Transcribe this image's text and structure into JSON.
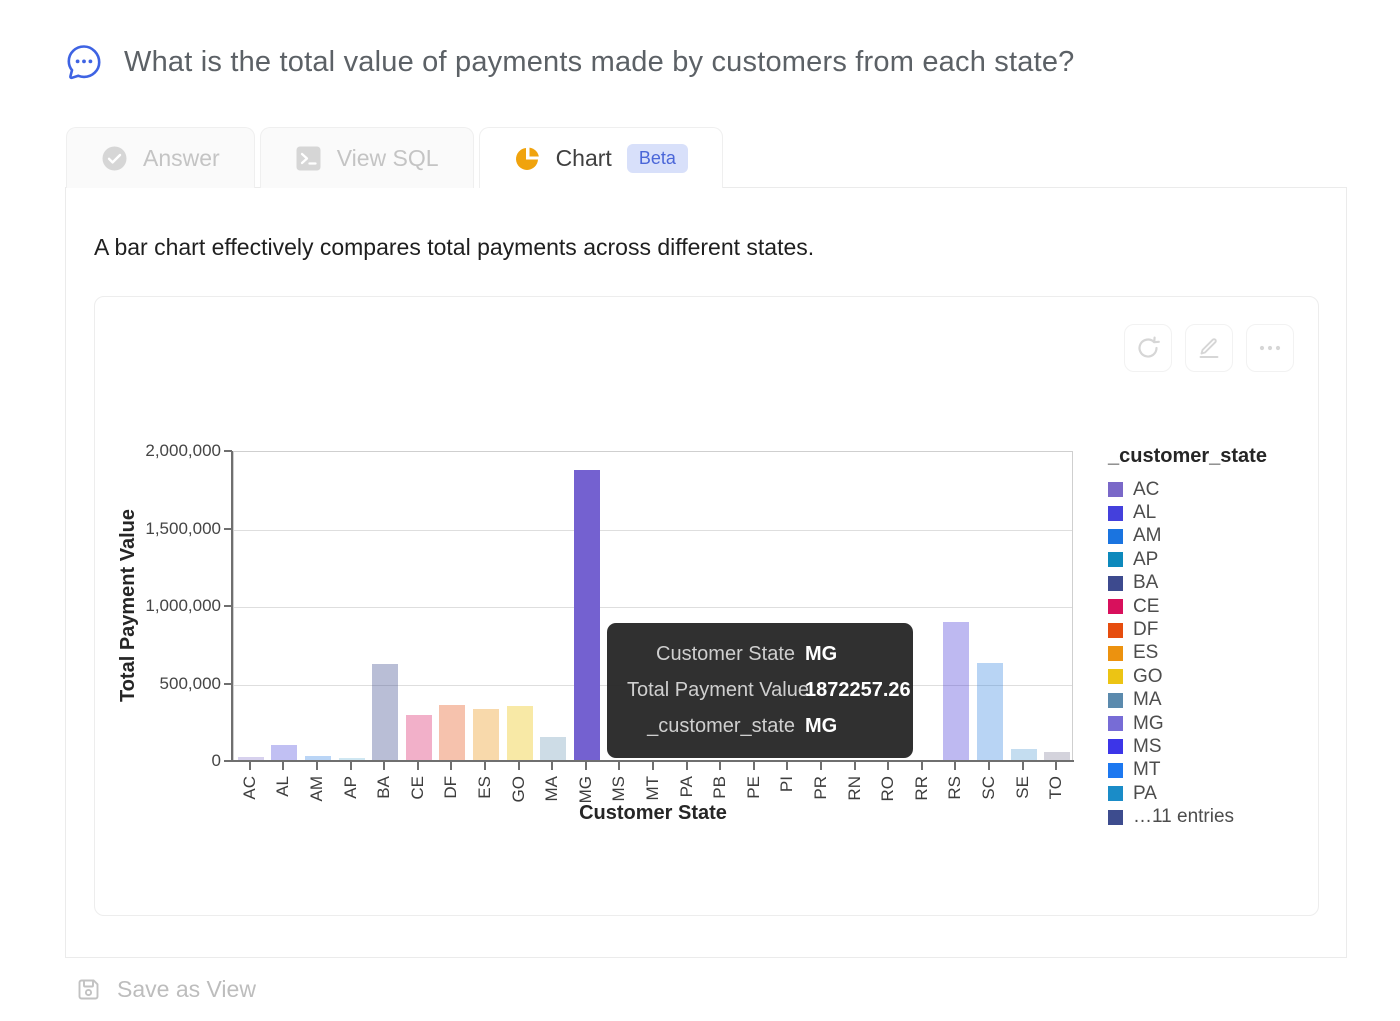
{
  "header": {
    "question": "What is the total value of payments made by customers from each state?",
    "icon": "chat-bubble-icon",
    "accent_color": "#3e63e3"
  },
  "tabs": [
    {
      "label": "Answer",
      "icon": "check-circle-icon",
      "active": false
    },
    {
      "label": "View SQL",
      "icon": "terminal-icon",
      "active": false
    },
    {
      "label": "Chart",
      "icon": "pie-chart-icon",
      "active": true,
      "badge": "Beta"
    }
  ],
  "description": "A bar chart effectively compares total payments across different states.",
  "toolbar": {
    "icons": [
      "refresh-icon",
      "edit-icon",
      "more-icon"
    ]
  },
  "footer": {
    "save_label": "Save as View",
    "icon": "save-icon"
  },
  "colors": {
    "pie_icon_orange": "#f0a30d",
    "beta_badge_bg": "#d8e0fa",
    "beta_badge_text": "#4a66d8",
    "tooltip_bg": "#282828",
    "highlight_bar": "#7461d0"
  },
  "chart_data": {
    "type": "bar",
    "title": "",
    "xlabel": "Customer State",
    "ylabel": "Total Payment Value",
    "ylim": [
      0,
      2000000
    ],
    "grid": true,
    "legend_position": "right",
    "yticks": [
      {
        "value": 0,
        "label": "0"
      },
      {
        "value": 500000,
        "label": "500,000"
      },
      {
        "value": 1000000,
        "label": "1,000,000"
      },
      {
        "value": 1500000,
        "label": "1,500,000"
      },
      {
        "value": 2000000,
        "label": "2,000,000"
      }
    ],
    "categories": [
      "AC",
      "AL",
      "AM",
      "AP",
      "BA",
      "CE",
      "DF",
      "ES",
      "GO",
      "MA",
      "MG",
      "MS",
      "MT",
      "PA",
      "PB",
      "PE",
      "PI",
      "PR",
      "RN",
      "RO",
      "RR",
      "RS",
      "SC",
      "SE",
      "TO"
    ],
    "values": [
      20000,
      100000,
      28000,
      12000,
      620000,
      290000,
      355000,
      327000,
      350000,
      150000,
      1872257.26,
      null,
      null,
      null,
      null,
      null,
      null,
      null,
      null,
      null,
      null,
      888000,
      623000,
      71000,
      54000
    ],
    "bar_colors": [
      "rgba(122,104,200,0.30)",
      "rgba(68,64,220,0.33)",
      "rgba(26,116,224,0.30)",
      "rgba(13,137,188,0.20)",
      "rgba(61,74,142,0.36)",
      "rgba(216,16,92,0.33)",
      "rgba(230,77,14,0.34)",
      "rgba(236,146,15,0.35)",
      "rgba(236,196,20,0.38)",
      "rgba(91,138,173,0.30)",
      "rgba(116,97,208,1)",
      "",
      "",
      "",
      "",
      "",
      "",
      "",
      "",
      "",
      "",
      "rgba(70,55,215,0.35)",
      "rgba(52,132,223,0.35)",
      "rgba(58,142,205,0.30)",
      "rgba(112,108,138,0.30)"
    ],
    "highlighted_category": "MG",
    "obscured_by_tooltip": [
      "MS",
      "MT",
      "PA",
      "PB",
      "PE",
      "PI",
      "PR",
      "RN",
      "RO",
      "RR"
    ],
    "legend": {
      "title": "_customer_state",
      "entries": [
        {
          "label": "AC",
          "color": "#7a68c8"
        },
        {
          "label": "AL",
          "color": "#4440dc"
        },
        {
          "label": "AM",
          "color": "#1a74e0"
        },
        {
          "label": "AP",
          "color": "#0d89bc"
        },
        {
          "label": "BA",
          "color": "#3d4a8e"
        },
        {
          "label": "CE",
          "color": "#d8105c"
        },
        {
          "label": "DF",
          "color": "#e64d0e"
        },
        {
          "label": "ES",
          "color": "#ec920f"
        },
        {
          "label": "GO",
          "color": "#ecc414"
        },
        {
          "label": "MA",
          "color": "#5b8aad"
        },
        {
          "label": "MG",
          "color": "#776cd6"
        },
        {
          "label": "MS",
          "color": "#3c35e8"
        },
        {
          "label": "MT",
          "color": "#1d78f0"
        },
        {
          "label": "PA",
          "color": "#1a8cc8"
        },
        {
          "label": "…11 entries",
          "color": "#3d4c8e"
        }
      ]
    },
    "tooltip": {
      "rows": [
        {
          "label": "Customer State",
          "value": "MG"
        },
        {
          "label": "Total Payment Value",
          "value": "1872257.26"
        },
        {
          "label": "_customer_state",
          "value": "MG"
        }
      ]
    }
  }
}
